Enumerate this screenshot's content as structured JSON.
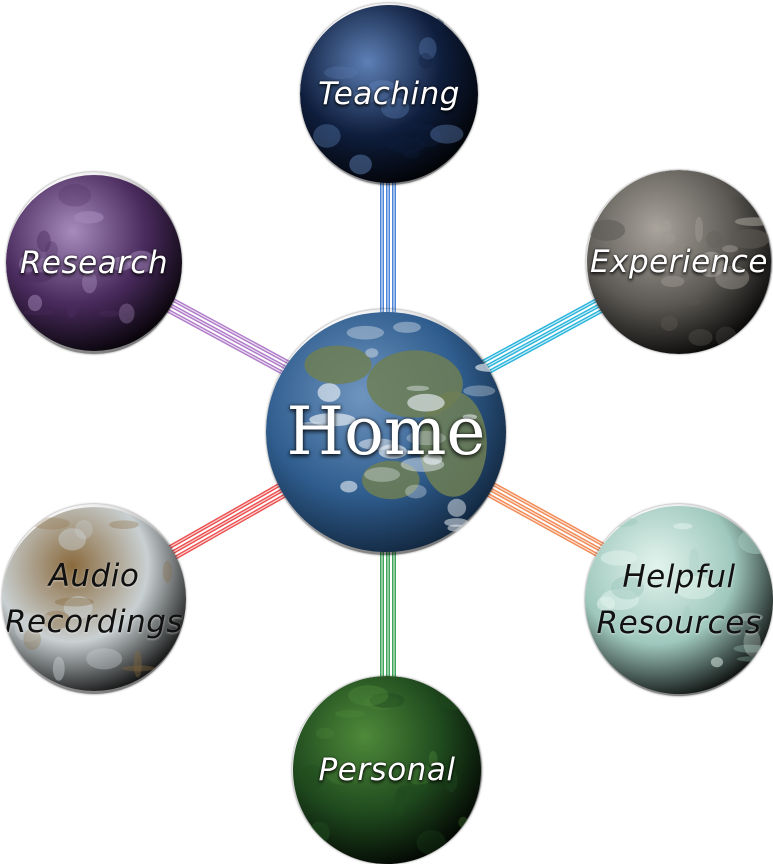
{
  "home": {
    "label": "Home",
    "colors": {
      "ocean": "#2f5d8e",
      "land": "#6f7f55",
      "cloud": "#e8eef4"
    }
  },
  "planets": {
    "teaching": {
      "label_lines": [
        "Teaching"
      ],
      "text_color": "light",
      "base": "#0f1e3d",
      "accent": "#5d80b6"
    },
    "research": {
      "label_lines": [
        "Research"
      ],
      "text_color": "light",
      "base": "#4a2b5e",
      "accent": "#a68bbd"
    },
    "experience": {
      "label_lines": [
        "Experience"
      ],
      "text_color": "light",
      "base": "#5d5a55",
      "accent": "#a9a49c"
    },
    "audio": {
      "label_lines": [
        "Audio",
        "Recordings"
      ],
      "text_color": "dark",
      "base": "#c9d0d2",
      "accent": "#8a6a3d"
    },
    "helpful": {
      "label_lines": [
        "Helpful",
        "Resources"
      ],
      "text_color": "dark",
      "base": "#9fc8bd",
      "accent": "#e3f4ee"
    },
    "personal": {
      "label_lines": [
        "Personal"
      ],
      "text_color": "light",
      "base": "#1f4a1e",
      "accent": "#4f8a3a"
    }
  },
  "connector_colors": {
    "teaching": "#4d86d8",
    "research": "#b07cc9",
    "experience": "#29b4dc",
    "audio": "#ec4f4f",
    "helpful": "#f28a55",
    "personal": "#3ea55b"
  }
}
